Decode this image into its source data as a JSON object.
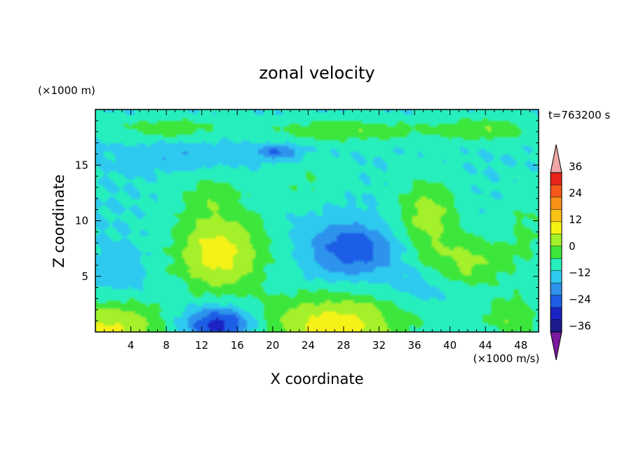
{
  "chart_data": {
    "type": "heatmap",
    "title": "zonal velocity",
    "xlabel": "X coordinate",
    "ylabel": "Z coordinate",
    "x_unit": "(×1000 m/s)",
    "y_unit": "(×1000 m)",
    "time_label": "t=763200 s",
    "xlim": [
      0,
      50
    ],
    "ylim": [
      0,
      20
    ],
    "x_ticks": [
      4,
      8,
      12,
      16,
      20,
      24,
      28,
      32,
      36,
      40,
      44,
      48
    ],
    "y_ticks": [
      5,
      10,
      15
    ],
    "colorbar": {
      "levels": [
        -42,
        -36,
        -30,
        -24,
        -18,
        -12,
        -6,
        0,
        6,
        12,
        18,
        24,
        30,
        36,
        42
      ],
      "labels": [
        -36,
        -24,
        -12,
        0,
        12,
        24,
        36
      ],
      "colors": [
        "#7a1aa0",
        "#1d1a8e",
        "#1a23c4",
        "#1e5ee6",
        "#2e93ec",
        "#2ec9ef",
        "#26eebd",
        "#3ee63a",
        "#a4f02a",
        "#f4f212",
        "#f9c316",
        "#f99018",
        "#f55818",
        "#e82418",
        "#f0a6a6"
      ],
      "extend": "both"
    },
    "field_features": [
      {
        "kind": "positive",
        "center": [
          14,
          7.2
        ],
        "peak": 14
      },
      {
        "kind": "positive",
        "center": [
          27,
          1.0
        ],
        "peak": 14
      },
      {
        "kind": "positive",
        "center": [
          1.5,
          0.6
        ],
        "peak": 13
      },
      {
        "kind": "positive",
        "center": [
          38,
          10.5
        ],
        "peak": 9
      },
      {
        "kind": "positive",
        "center": [
          42,
          6.0
        ],
        "peak": 7
      },
      {
        "kind": "negative",
        "center": [
          29,
          7.5
        ],
        "peak": -20
      },
      {
        "kind": "negative",
        "center": [
          14,
          1.0
        ],
        "peak": -26
      },
      {
        "kind": "negative",
        "center": [
          20.5,
          16.2
        ],
        "peak": -17
      }
    ]
  }
}
